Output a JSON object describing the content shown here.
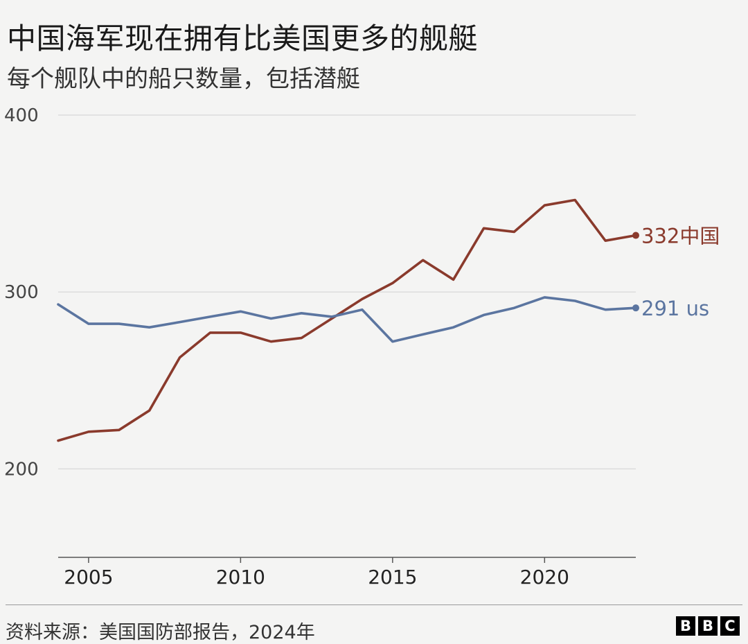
{
  "title": "中国海军现在拥有比美国更多的舰艇",
  "subtitle": "每个舰队中的船只数量，包括潜艇",
  "source": "资料来源：美国国防部报告，2024年",
  "logo": [
    "B",
    "B",
    "C"
  ],
  "colors": {
    "china": "#8a3a2c",
    "us": "#5b75a0",
    "grid": "#dcdcdc",
    "axis": "#555555"
  },
  "chart_data": {
    "type": "line",
    "ylim": [
      150,
      400
    ],
    "xlim": [
      2004,
      2023
    ],
    "yticks": [
      200,
      300,
      400
    ],
    "xticks": [
      2005,
      2010,
      2015,
      2020
    ],
    "grid": "horizontal",
    "x": [
      2004,
      2005,
      2006,
      2007,
      2008,
      2009,
      2010,
      2011,
      2012,
      2013,
      2014,
      2015,
      2016,
      2017,
      2018,
      2019,
      2020,
      2021,
      2022,
      2023
    ],
    "series": [
      {
        "key": "china",
        "end_label": "332中国",
        "values": [
          216,
          221,
          222,
          233,
          263,
          277,
          277,
          272,
          274,
          285,
          296,
          305,
          318,
          307,
          336,
          334,
          349,
          352,
          329,
          332
        ]
      },
      {
        "key": "us",
        "end_label": "291 us",
        "values": [
          293,
          282,
          282,
          280,
          283,
          286,
          289,
          285,
          288,
          286,
          290,
          272,
          276,
          280,
          287,
          291,
          297,
          295,
          290,
          291
        ]
      }
    ]
  }
}
